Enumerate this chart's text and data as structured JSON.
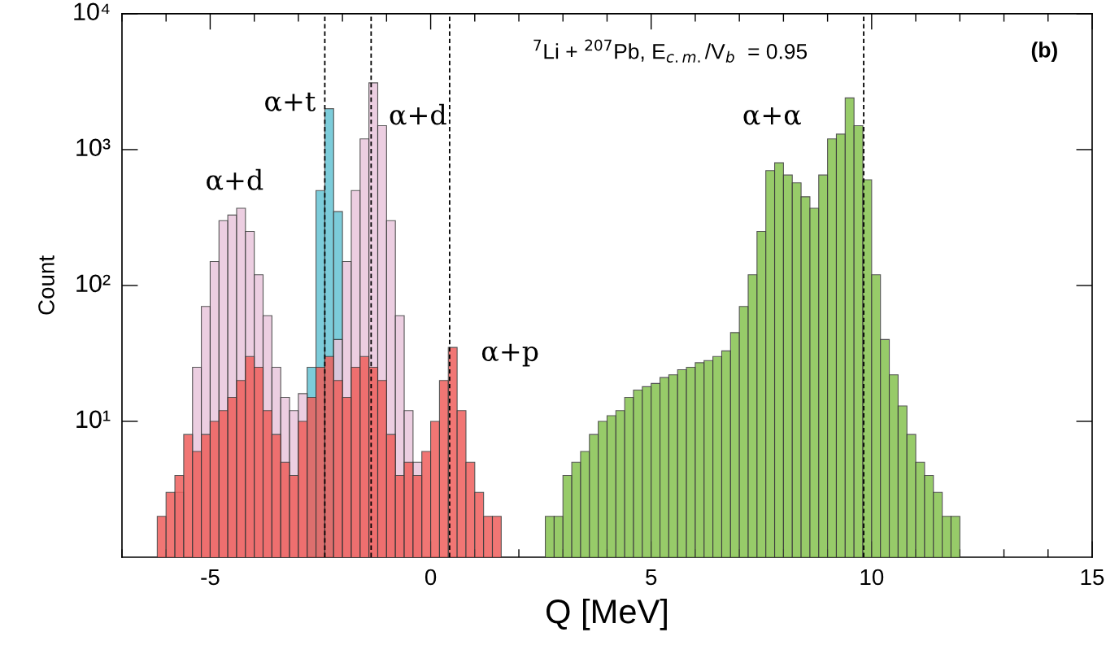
{
  "chart_data": {
    "type": "histogram",
    "title": "$^{7}$Li + $^{207}$Pb, E$_{c.m.}$/V$_{b}$  = 0.95",
    "xlabel": "Q [MeV]",
    "ylabel": "Count",
    "log": "y",
    "grid": false,
    "xlim": [
      -7,
      15
    ],
    "ylim": [
      1,
      10000
    ],
    "xticks": [
      -5,
      0,
      5,
      10,
      15
    ],
    "yticks": [
      {
        "value": 10,
        "label": "10¹"
      },
      {
        "value": 100,
        "label": "10²"
      },
      {
        "value": 1000,
        "label": "10³"
      },
      {
        "value": 10000,
        "label": "10⁴"
      }
    ],
    "bins": [
      -6.2,
      -6.0,
      -5.8,
      -5.6,
      -5.4,
      -5.2,
      -5.0,
      -4.8,
      -4.6,
      -4.4,
      -4.2,
      -4.0,
      -3.8,
      -3.6,
      -3.4,
      -3.2,
      -3.0,
      -2.8,
      -2.6,
      -2.4,
      -2.2,
      -2.0,
      -1.8,
      -1.6,
      -1.4,
      -1.2,
      -1.0,
      -0.8,
      -0.6,
      -0.4,
      -0.2,
      0.0,
      0.2,
      0.4,
      0.6,
      0.8,
      1.0,
      1.2,
      1.4,
      1.6,
      1.8,
      2.0,
      2.2,
      2.4,
      2.6,
      2.8,
      3.0,
      3.2,
      3.4,
      3.6,
      3.8,
      4.0,
      4.2,
      4.4,
      4.6,
      4.8,
      5.0,
      5.2,
      5.4,
      5.6,
      5.8,
      6.0,
      6.2,
      6.4,
      6.6,
      6.8,
      7.0,
      7.2,
      7.4,
      7.6,
      7.8,
      8.0,
      8.2,
      8.4,
      8.6,
      8.8,
      9.0,
      9.2,
      9.4,
      9.6,
      9.8,
      10.0,
      10.2,
      10.4,
      10.6,
      10.8,
      11.0,
      11.2,
      11.4,
      11.6,
      11.8,
      12.0
    ],
    "series": [
      {
        "color": "#66c4d4",
        "values": [
          null,
          null,
          null,
          null,
          null,
          null,
          null,
          null,
          null,
          null,
          null,
          null,
          null,
          null,
          null,
          null,
          null,
          25,
          500,
          2000,
          350,
          null,
          null,
          null,
          null,
          null,
          null,
          null,
          null,
          null,
          null,
          null,
          null,
          null,
          null,
          null,
          null,
          null,
          null,
          null,
          null,
          null,
          null,
          null,
          null,
          null,
          null,
          null,
          null,
          null,
          null,
          null,
          null,
          null,
          null,
          null,
          null,
          null,
          null,
          null,
          null,
          null,
          null,
          null,
          null,
          null,
          null,
          null,
          null,
          null,
          null,
          null,
          null,
          null,
          null,
          null,
          null,
          null,
          null,
          null,
          null,
          null,
          null,
          null,
          null,
          null,
          null,
          null,
          null,
          null,
          null
        ]
      },
      {
        "color": "#e9c6dc",
        "values": [
          null,
          null,
          3,
          null,
          25,
          70,
          150,
          300,
          330,
          370,
          250,
          120,
          60,
          25,
          15,
          12,
          16,
          null,
          null,
          null,
          40,
          150,
          500,
          1200,
          3100,
          1500,
          300,
          60,
          12,
          5,
          null,
          null,
          null,
          null,
          null,
          null,
          null,
          null,
          null,
          null,
          null,
          null,
          null,
          null,
          null,
          null,
          null,
          null,
          null,
          null,
          null,
          null,
          null,
          null,
          null,
          null,
          null,
          null,
          null,
          null,
          null,
          null,
          null,
          null,
          null,
          null,
          null,
          null,
          null,
          null,
          null,
          null,
          null,
          null,
          null,
          null,
          null,
          null,
          null,
          null,
          null,
          null,
          null,
          null,
          null,
          null,
          null,
          null,
          null,
          null,
          null
        ]
      },
      {
        "color": "#ef5f5c",
        "values": [
          2,
          3,
          4,
          8,
          6,
          8,
          10,
          12,
          15,
          20,
          30,
          25,
          12,
          8,
          5,
          4,
          10,
          15,
          25,
          30,
          20,
          15,
          25,
          30,
          25,
          20,
          8,
          4,
          5,
          4,
          6,
          10,
          20,
          35,
          12,
          5,
          3,
          2,
          2,
          null,
          null,
          null,
          null,
          null,
          null,
          null,
          null,
          null,
          null,
          null,
          null,
          null,
          null,
          null,
          null,
          null,
          null,
          null,
          null,
          null,
          null,
          null,
          null,
          null,
          null,
          null,
          null,
          null,
          null,
          null,
          null,
          null,
          null,
          null,
          null,
          null,
          null,
          null,
          null,
          null,
          null,
          null,
          null,
          null,
          null,
          null,
          null,
          null,
          null,
          null,
          null
        ]
      },
      {
        "color": "#86c24f",
        "values": [
          null,
          null,
          null,
          null,
          null,
          null,
          null,
          null,
          null,
          null,
          null,
          null,
          null,
          null,
          null,
          null,
          null,
          null,
          null,
          null,
          null,
          null,
          null,
          null,
          null,
          null,
          null,
          null,
          null,
          null,
          null,
          null,
          null,
          null,
          null,
          null,
          null,
          null,
          null,
          null,
          null,
          null,
          null,
          null,
          2,
          2,
          4,
          5,
          6,
          8,
          10,
          11,
          12,
          15,
          17,
          18,
          19,
          21,
          22,
          24,
          25,
          27,
          28,
          30,
          33,
          45,
          70,
          120,
          250,
          700,
          800,
          650,
          570,
          450,
          370,
          650,
          1200,
          1300,
          2400,
          1500,
          600,
          120,
          40,
          22,
          13,
          8,
          5,
          4,
          3,
          2,
          2
        ]
      }
    ],
    "ref_lines": [
      {
        "axis": "x",
        "value": -2.4,
        "color": "#000000",
        "line_style": "dashed"
      },
      {
        "axis": "x",
        "value": -1.35,
        "color": "#000000",
        "line_style": "dashed"
      },
      {
        "axis": "x",
        "value": 0.43,
        "color": "#000000",
        "line_style": "dashed"
      },
      {
        "axis": "x",
        "value": 9.82,
        "color": "#000000",
        "line_style": "dashed"
      }
    ],
    "annotations": [
      "α+d",
      "α+t",
      "α+d",
      "α+p",
      "α+α",
      "(b)"
    ]
  }
}
